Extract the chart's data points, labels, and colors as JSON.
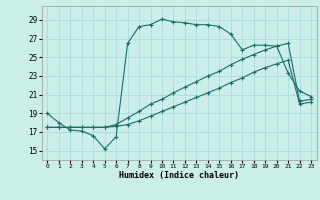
{
  "xlabel": "Humidex (Indice chaleur)",
  "bg_color": "#cceee8",
  "grid_color": "#aaddda",
  "line_color": "#1a6b6b",
  "x_ticks": [
    0,
    1,
    2,
    3,
    4,
    5,
    6,
    7,
    8,
    9,
    10,
    11,
    12,
    13,
    14,
    15,
    16,
    17,
    18,
    19,
    20,
    21,
    22,
    23
  ],
  "y_ticks": [
    15,
    17,
    19,
    21,
    23,
    25,
    27,
    29
  ],
  "ylim": [
    14.0,
    30.5
  ],
  "xlim": [
    -0.5,
    23.5
  ],
  "curve1_x": [
    0,
    1,
    2,
    3,
    4,
    5,
    6,
    7,
    8,
    9,
    10,
    11,
    12,
    13,
    14,
    15,
    16,
    17,
    18,
    19,
    20,
    21,
    22,
    23
  ],
  "curve1_y": [
    19.0,
    18.0,
    17.2,
    17.1,
    16.6,
    15.2,
    16.5,
    26.5,
    28.3,
    28.5,
    29.1,
    28.8,
    28.7,
    28.5,
    28.5,
    28.3,
    27.5,
    25.8,
    26.3,
    26.3,
    26.2,
    23.3,
    21.4,
    20.8
  ],
  "curve2_x": [
    0,
    1,
    2,
    3,
    4,
    5,
    6,
    7,
    8,
    9,
    10,
    11,
    12,
    13,
    14,
    15,
    16,
    17,
    18,
    19,
    20,
    21,
    22,
    23
  ],
  "curve2_y": [
    17.5,
    17.5,
    17.5,
    17.5,
    17.5,
    17.5,
    17.8,
    18.5,
    19.2,
    20.0,
    20.5,
    21.2,
    21.8,
    22.4,
    23.0,
    23.5,
    24.2,
    24.8,
    25.3,
    25.8,
    26.2,
    26.5,
    20.3,
    20.5
  ],
  "curve3_x": [
    0,
    1,
    2,
    3,
    4,
    5,
    6,
    7,
    8,
    9,
    10,
    11,
    12,
    13,
    14,
    15,
    16,
    17,
    18,
    19,
    20,
    21,
    22,
    23
  ],
  "curve3_y": [
    17.5,
    17.5,
    17.5,
    17.5,
    17.5,
    17.5,
    17.6,
    17.8,
    18.2,
    18.7,
    19.2,
    19.7,
    20.2,
    20.7,
    21.2,
    21.7,
    22.3,
    22.8,
    23.4,
    23.9,
    24.3,
    24.7,
    20.0,
    20.2
  ]
}
